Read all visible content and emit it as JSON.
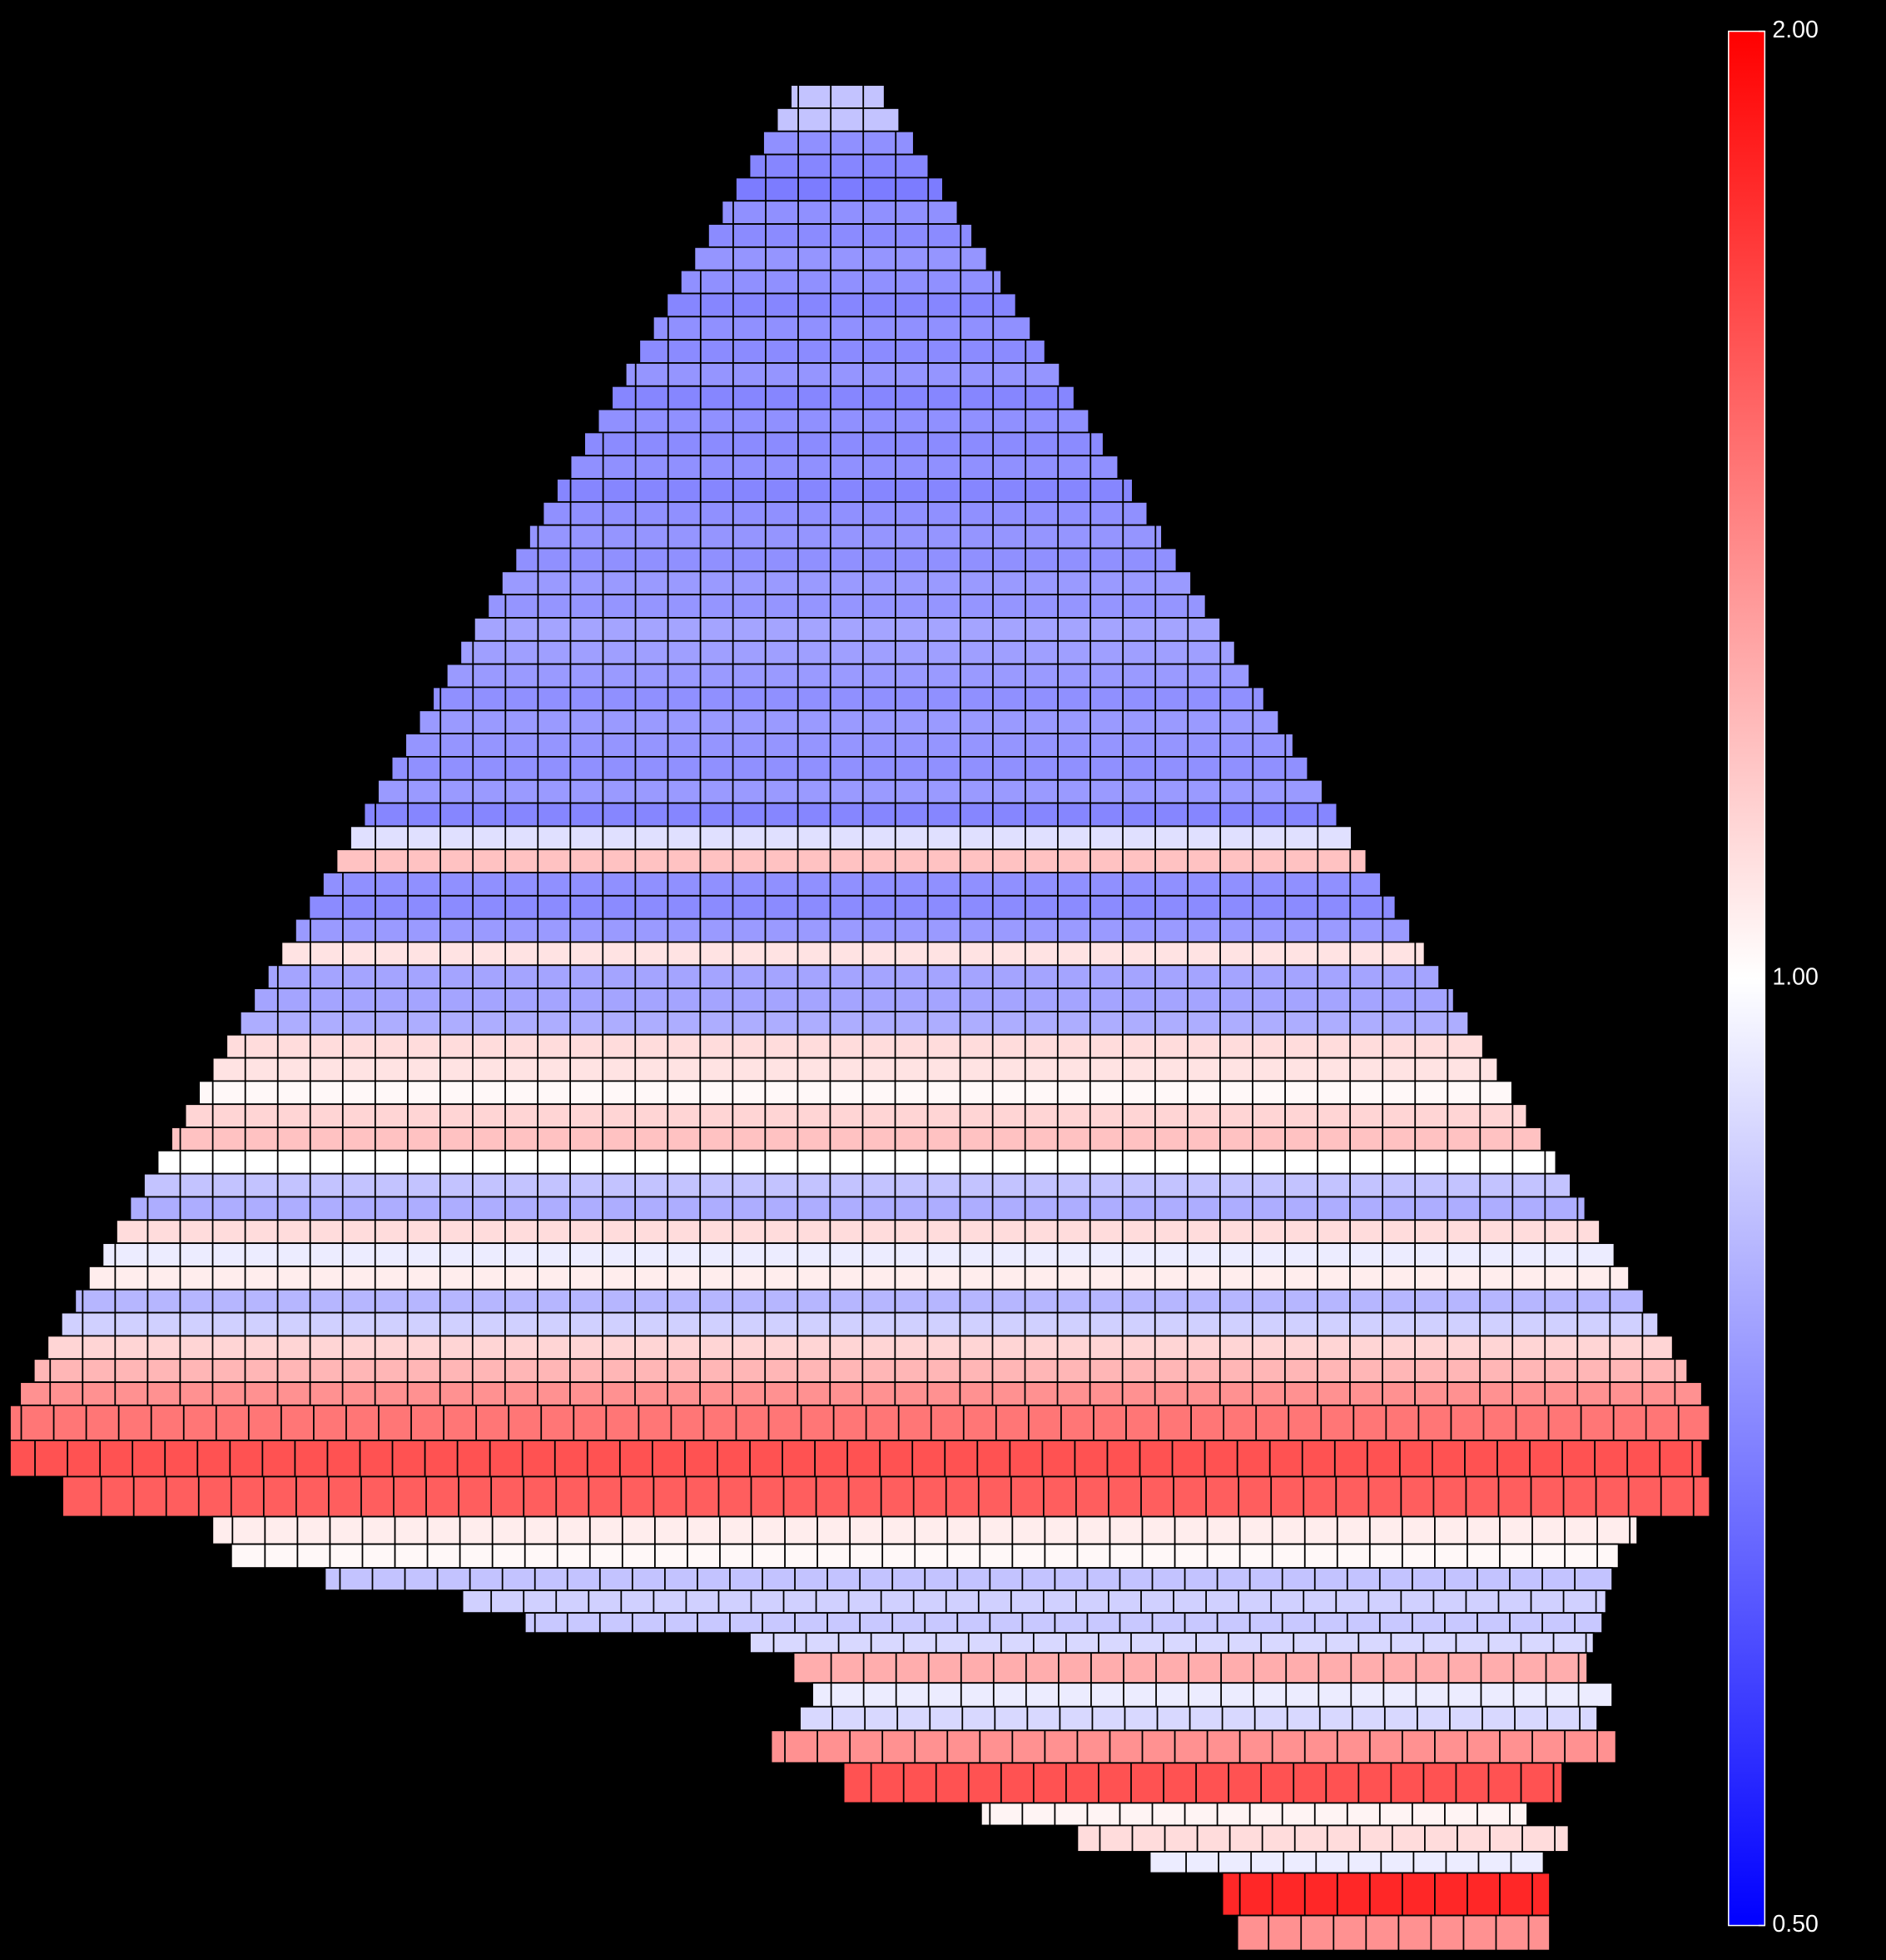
{
  "chart_data": {
    "type": "heatmap",
    "rows": [
      0.85,
      0.85,
      0.74,
      0.72,
      0.7,
      0.74,
      0.73,
      0.75,
      0.74,
      0.72,
      0.74,
      0.73,
      0.75,
      0.72,
      0.74,
      0.73,
      0.74,
      0.72,
      0.74,
      0.75,
      0.74,
      0.76,
      0.75,
      0.78,
      0.77,
      0.76,
      0.74,
      0.76,
      0.75,
      0.74,
      0.76,
      0.72,
      0.92,
      1.18,
      0.74,
      0.73,
      0.76,
      1.08,
      0.78,
      0.78,
      0.8,
      1.1,
      1.08,
      1.02,
      1.12,
      1.18,
      1.0,
      0.85,
      0.8,
      1.1,
      0.95,
      1.05,
      0.82,
      0.88,
      1.12,
      1.22,
      1.35,
      1.45,
      1.6,
      1.55,
      1.05,
      1.02,
      0.85,
      0.88,
      0.86,
      0.9,
      1.25,
      0.95,
      0.9,
      1.35,
      1.6,
      1.03,
      1.1,
      0.95,
      1.8,
      1.35
    ],
    "colorscale": "log",
    "colors": {
      "low": "#0000ff",
      "mid": "#ffffff",
      "high": "#ff0000"
    },
    "clim": [
      0.5,
      2
    ],
    "cticks": [
      {
        "value": 0.5,
        "label": "0.50"
      },
      {
        "value": 1,
        "label": "1.00"
      },
      {
        "value": 2,
        "label": "2.00"
      }
    ]
  }
}
